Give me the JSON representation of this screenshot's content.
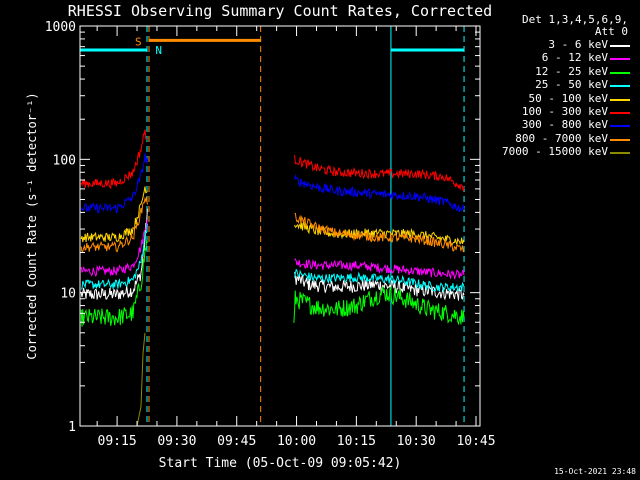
{
  "chart_data": {
    "type": "line",
    "title": "RHESSI Observing Summary Count Rates, Corrected",
    "ylabel": "Corrected Count Rate (s⁻¹ detector⁻¹)",
    "xlabel": "Start Time (05-Oct-09 09:05:42)",
    "y_scale": "log",
    "ylim": [
      1,
      1000
    ],
    "yticks": [
      "1",
      "10",
      "100",
      "1000"
    ],
    "xlim": [
      "09:05:42",
      "10:46:00"
    ],
    "xticks": [
      "09:15",
      "09:30",
      "09:45",
      "10:00",
      "10:15",
      "10:30",
      "10:45"
    ],
    "grid": false,
    "legend_position": "right",
    "legend_header": [
      "Det 1,3,4,5,6,9,",
      "Att 0"
    ],
    "series": [
      {
        "name": "3 - 6 keV",
        "color": "#ffffff",
        "points": [
          [
            "09:06",
            9.7
          ],
          [
            "09:15",
            9.7
          ],
          [
            "09:19",
            10.5
          ],
          [
            "09:21",
            14
          ],
          [
            "09:22",
            25
          ],
          [
            "09:22:40",
            45
          ],
          [
            "09:59:30",
            13
          ],
          [
            "10:03",
            11.5
          ],
          [
            "10:10",
            11
          ],
          [
            "10:20",
            11.5
          ],
          [
            "10:30",
            10.5
          ],
          [
            "10:37",
            10
          ],
          [
            "10:42",
            9.6
          ]
        ]
      },
      {
        "name": "6 - 12 keV",
        "color": "#ff00ff",
        "points": [
          [
            "09:06",
            14.5
          ],
          [
            "09:15",
            14.5
          ],
          [
            "09:19",
            16
          ],
          [
            "09:21",
            22
          ],
          [
            "09:22",
            30
          ],
          [
            "09:22:40",
            38
          ],
          [
            "09:59:30",
            17
          ],
          [
            "10:05",
            16
          ],
          [
            "10:15",
            16
          ],
          [
            "10:25",
            15
          ],
          [
            "10:35",
            14
          ],
          [
            "10:42",
            13.5
          ]
        ]
      },
      {
        "name": "12 - 25 keV",
        "color": "#00ff00",
        "points": [
          [
            "09:06",
            6.5
          ],
          [
            "09:15",
            6.5
          ],
          [
            "09:19",
            7
          ],
          [
            "09:21",
            12
          ],
          [
            "09:22",
            20
          ],
          [
            "09:22:40",
            26
          ],
          [
            "09:59:20",
            5.5
          ],
          [
            "09:59:40",
            9
          ],
          [
            "10:05",
            7.8
          ],
          [
            "10:10",
            7.5
          ],
          [
            "10:15",
            8
          ],
          [
            "10:18",
            9
          ],
          [
            "10:22",
            10
          ],
          [
            "10:27",
            9
          ],
          [
            "10:33",
            7.5
          ],
          [
            "10:40",
            6.8
          ],
          [
            "10:42",
            6.5
          ]
        ]
      },
      {
        "name": "25 - 50 keV",
        "color": "#00ffff",
        "points": [
          [
            "09:06",
            11.5
          ],
          [
            "09:15",
            11.5
          ],
          [
            "09:19",
            12.5
          ],
          [
            "09:21",
            17
          ],
          [
            "09:22",
            27
          ],
          [
            "09:22:40",
            33
          ],
          [
            "09:59:30",
            14
          ],
          [
            "10:05",
            12.8
          ],
          [
            "10:15",
            13
          ],
          [
            "10:25",
            12.5
          ],
          [
            "10:35",
            11
          ],
          [
            "10:42",
            11
          ]
        ]
      },
      {
        "name": "50 - 100 keV",
        "color": "#ffd700",
        "points": [
          [
            "09:06",
            26
          ],
          [
            "09:15",
            26
          ],
          [
            "09:19",
            30
          ],
          [
            "09:21",
            45
          ],
          [
            "09:22",
            62
          ],
          [
            "09:22:40",
            58
          ],
          [
            "09:59:30",
            33
          ],
          [
            "10:05",
            29
          ],
          [
            "10:10",
            27.5
          ],
          [
            "10:20",
            28
          ],
          [
            "10:30",
            27.5
          ],
          [
            "10:38",
            25
          ],
          [
            "10:42",
            24
          ]
        ]
      },
      {
        "name": "100 - 300 keV",
        "color": "#ff0000",
        "points": [
          [
            "09:06",
            66
          ],
          [
            "09:15",
            66
          ],
          [
            "09:19",
            80
          ],
          [
            "09:21",
            120
          ],
          [
            "09:22",
            165
          ],
          [
            "09:22:40",
            130
          ],
          [
            "09:59:30",
            100
          ],
          [
            "10:05",
            86
          ],
          [
            "10:10",
            80
          ],
          [
            "10:20",
            78
          ],
          [
            "10:30",
            78
          ],
          [
            "10:37",
            74
          ],
          [
            "10:42",
            62
          ]
        ]
      },
      {
        "name": "300 - 800 keV",
        "color": "#0000ff",
        "points": [
          [
            "09:06",
            43
          ],
          [
            "09:15",
            43
          ],
          [
            "09:19",
            52
          ],
          [
            "09:21",
            75
          ],
          [
            "09:22",
            105
          ],
          [
            "09:22:40",
            95
          ],
          [
            "09:59:30",
            70
          ],
          [
            "10:05",
            62
          ],
          [
            "10:10",
            58
          ],
          [
            "10:20",
            55
          ],
          [
            "10:30",
            53
          ],
          [
            "10:37",
            48
          ],
          [
            "10:42",
            42
          ]
        ]
      },
      {
        "name": "800 - 7000 keV",
        "color": "#ff8c00",
        "points": [
          [
            "09:06",
            22
          ],
          [
            "09:15",
            22
          ],
          [
            "09:19",
            26
          ],
          [
            "09:21",
            40
          ],
          [
            "09:22",
            52
          ],
          [
            "09:22:40",
            48
          ],
          [
            "09:59:30",
            37
          ],
          [
            "10:05",
            31
          ],
          [
            "10:10",
            28
          ],
          [
            "10:20",
            26
          ],
          [
            "10:30",
            25.5
          ],
          [
            "10:37",
            23
          ],
          [
            "10:42",
            21
          ]
        ]
      },
      {
        "name": "7000 - 15000 keV",
        "color": "#8b8b00",
        "points": [
          [
            "09:20",
            1
          ],
          [
            "09:21",
            1.4
          ],
          [
            "09:21:30",
            3.5
          ],
          [
            "09:22",
            5
          ]
        ]
      }
    ],
    "markers": [
      {
        "label": "S",
        "color": "#ff8c00",
        "start": "09:23:00",
        "end": "09:51:00"
      },
      {
        "label": "N",
        "color": "#00ffff",
        "start": "09:23:20",
        "end": "09:23:20"
      },
      {
        "label": "",
        "color": "#00ffff",
        "start": "09:05:42",
        "end": "09:22:30"
      },
      {
        "label": "",
        "color": "#00ffff",
        "start": "10:23:40",
        "end": "10:42:00"
      }
    ],
    "marker_levels": {
      "S": 780,
      "N": 660
    }
  },
  "timestamp": "15-Oct-2021 23:48"
}
